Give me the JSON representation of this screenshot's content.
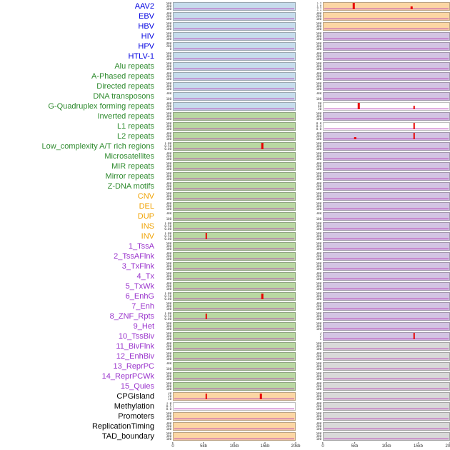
{
  "palette": {
    "panel": {
      "blue": "#c6dcec",
      "green": "#b9d8a2",
      "orange": "#fcd6a4",
      "lavender": "#d3c4e3",
      "gray": "#d9d9d9",
      "white": "#ffffff"
    },
    "label": {
      "virus": "#0000e0",
      "repeat": "#2d8a2d",
      "sv": "#f0a202",
      "state": "#9932cc",
      "other": "#000000"
    },
    "baseline": "#b030b0",
    "spike": "#e80000"
  },
  "chart_data": {
    "type": "line",
    "description": "Small-multiple genomic signal tracks: 44 feature rows x 2 region columns; pastel block = track background, magenta line = flat baseline signal, red bars = signal peaks",
    "x_axis": {
      "ticks": [
        "0",
        "5kb",
        "10kb",
        "15kb",
        "20kb"
      ],
      "range_kb": [
        0,
        20
      ]
    },
    "columns": [
      "left",
      "right"
    ],
    "rows": [
      {
        "label": "AAV2",
        "group": "virus",
        "left": {
          "bg": "blue",
          "ticks": [
            "500",
            "300",
            "100"
          ],
          "spikes": []
        },
        "right": {
          "bg": "orange",
          "ticks": [
            "1.5",
            "1.0",
            "0.5",
            "0.0"
          ],
          "spikes": [
            {
              "x": 0.24,
              "h": 0.95
            },
            {
              "x": 0.7,
              "h": 0.45
            }
          ]
        }
      },
      {
        "label": "EBV",
        "group": "virus",
        "left": {
          "bg": "blue",
          "ticks": [
            "300",
            "200",
            "100"
          ],
          "spikes": []
        },
        "right": {
          "bg": "orange",
          "ticks": [
            "300",
            "200",
            "100"
          ],
          "spikes": []
        }
      },
      {
        "label": "HBV",
        "group": "virus",
        "left": {
          "bg": "blue",
          "ticks": [
            "500",
            "300",
            "100"
          ],
          "spikes": []
        },
        "right": {
          "bg": "orange",
          "ticks": [
            "500",
            "300",
            "100"
          ],
          "spikes": []
        }
      },
      {
        "label": "HIV",
        "group": "virus",
        "left": {
          "bg": "blue",
          "ticks": [
            "500",
            "300",
            "100"
          ],
          "spikes": []
        },
        "right": {
          "bg": "lavender",
          "ticks": [
            "500",
            "300",
            "100"
          ],
          "spikes": []
        }
      },
      {
        "label": "HPV",
        "group": "virus",
        "left": {
          "bg": "blue",
          "ticks": [
            "400",
            "200",
            "0"
          ],
          "spikes": []
        },
        "right": {
          "bg": "lavender",
          "ticks": [
            "500",
            "300",
            "100"
          ],
          "spikes": []
        }
      },
      {
        "label": "HTLV-1",
        "group": "virus",
        "left": {
          "bg": "blue",
          "ticks": [
            "500",
            "300",
            "100"
          ],
          "spikes": []
        },
        "right": {
          "bg": "lavender",
          "ticks": [
            "300",
            "200",
            "100"
          ],
          "spikes": []
        }
      },
      {
        "label": "Alu repeats",
        "group": "repeat",
        "left": {
          "bg": "blue",
          "ticks": [
            "500",
            "300",
            "100"
          ],
          "spikes": []
        },
        "right": {
          "bg": "lavender",
          "ticks": [
            "500",
            "300",
            "100"
          ],
          "spikes": []
        }
      },
      {
        "label": "A-Phased repeats",
        "group": "repeat",
        "left": {
          "bg": "blue",
          "ticks": [
            "300",
            "200",
            "100"
          ],
          "spikes": []
        },
        "right": {
          "bg": "lavender",
          "ticks": [
            "300",
            "200",
            "100"
          ],
          "spikes": []
        }
      },
      {
        "label": "Directed repeats",
        "group": "repeat",
        "left": {
          "bg": "blue",
          "ticks": [
            "500",
            "300",
            "100"
          ],
          "spikes": []
        },
        "right": {
          "bg": "lavender",
          "ticks": [
            "500",
            "300",
            "100"
          ],
          "spikes": []
        }
      },
      {
        "label": "DNA transposons",
        "group": "repeat",
        "left": {
          "bg": "blue",
          "ticks": [
            "300",
            "100"
          ],
          "spikes": []
        },
        "right": {
          "bg": "lavender",
          "ticks": [
            "300",
            "100"
          ],
          "spikes": []
        }
      },
      {
        "label": "G-Quadruplex forming repeats",
        "group": "repeat",
        "left": {
          "bg": "blue",
          "ticks": [
            "300",
            "200",
            "100"
          ],
          "spikes": []
        },
        "right": {
          "bg": "white",
          "ticks": [
            "90",
            "60",
            "30"
          ],
          "spikes": [
            {
              "x": 0.28,
              "h": 0.95
            },
            {
              "x": 0.72,
              "h": 0.5
            }
          ]
        }
      },
      {
        "label": "Inverted repeats",
        "group": "repeat",
        "left": {
          "bg": "green",
          "ticks": [
            "500",
            "300",
            "100"
          ],
          "spikes": []
        },
        "right": {
          "bg": "lavender",
          "ticks": [
            "500",
            "300",
            "100"
          ],
          "spikes": []
        }
      },
      {
        "label": "L1 repeats",
        "group": "repeat",
        "left": {
          "bg": "green",
          "ticks": [
            "500",
            "300",
            "100"
          ],
          "spikes": []
        },
        "right": {
          "bg": "white",
          "ticks": [
            "0.8",
            "0.4",
            "0.0"
          ],
          "spikes": [
            {
              "x": 0.72,
              "h": 0.95
            }
          ]
        }
      },
      {
        "label": "L2 repeats",
        "group": "repeat",
        "left": {
          "bg": "green",
          "ticks": [
            "300",
            "200",
            "100"
          ],
          "spikes": []
        },
        "right": {
          "bg": "lavender",
          "ticks": [
            "300",
            "200",
            "100"
          ],
          "spikes": [
            {
              "x": 0.25,
              "h": 0.35
            },
            {
              "x": 0.72,
              "h": 0.9
            }
          ]
        }
      },
      {
        "label": "Low_complexity A/T rich regions",
        "group": "repeat",
        "left": {
          "bg": "green",
          "ticks": [
            "1.00",
            "0.50",
            "0.00"
          ],
          "spikes": [
            {
              "x": 0.73,
              "h": 0.9
            }
          ]
        },
        "right": {
          "bg": "lavender",
          "ticks": [
            "500",
            "300",
            "100"
          ],
          "spikes": []
        }
      },
      {
        "label": "Microsatellites",
        "group": "repeat",
        "left": {
          "bg": "green",
          "ticks": [
            "300",
            "200",
            "100"
          ],
          "spikes": []
        },
        "right": {
          "bg": "lavender",
          "ticks": [
            "500",
            "300",
            "100"
          ],
          "spikes": []
        }
      },
      {
        "label": "MIR repeats",
        "group": "repeat",
        "left": {
          "bg": "green",
          "ticks": [
            "500",
            "300",
            "100"
          ],
          "spikes": []
        },
        "right": {
          "bg": "lavender",
          "ticks": [
            "300",
            "200",
            "100"
          ],
          "spikes": []
        }
      },
      {
        "label": "Mirror repeats",
        "group": "repeat",
        "left": {
          "bg": "green",
          "ticks": [
            "500",
            "300",
            "100"
          ],
          "spikes": []
        },
        "right": {
          "bg": "lavender",
          "ticks": [
            "500",
            "300",
            "100"
          ],
          "spikes": []
        }
      },
      {
        "label": "Z-DNA motifs",
        "group": "repeat",
        "left": {
          "bg": "green",
          "ticks": [
            "300",
            "200",
            "100"
          ],
          "spikes": []
        },
        "right": {
          "bg": "lavender",
          "ticks": [
            "300",
            "200",
            "100"
          ],
          "spikes": []
        }
      },
      {
        "label": "CNV",
        "group": "sv",
        "left": {
          "bg": "green",
          "ticks": [
            "500",
            "300",
            "100"
          ],
          "spikes": []
        },
        "right": {
          "bg": "lavender",
          "ticks": [
            "500",
            "300",
            "100"
          ],
          "spikes": []
        }
      },
      {
        "label": "DEL",
        "group": "sv",
        "left": {
          "bg": "green",
          "ticks": [
            "300",
            "200",
            "100"
          ],
          "spikes": []
        },
        "right": {
          "bg": "lavender",
          "ticks": [
            "500",
            "300",
            "100"
          ],
          "spikes": []
        }
      },
      {
        "label": "DUP",
        "group": "sv",
        "left": {
          "bg": "green",
          "ticks": [
            "300",
            "100"
          ],
          "spikes": []
        },
        "right": {
          "bg": "lavender",
          "ticks": [
            "300",
            "100"
          ],
          "spikes": []
        }
      },
      {
        "label": "INS",
        "group": "sv",
        "left": {
          "bg": "green",
          "ticks": [
            "1.00",
            "0.50",
            "0.00"
          ],
          "spikes": []
        },
        "right": {
          "bg": "lavender",
          "ticks": [
            "500",
            "300",
            "100"
          ],
          "spikes": []
        }
      },
      {
        "label": "INV",
        "group": "sv",
        "left": {
          "bg": "green",
          "ticks": [
            "1.00",
            "0.50",
            "0.00"
          ],
          "spikes": [
            {
              "x": 0.27,
              "h": 0.9
            }
          ]
        },
        "right": {
          "bg": "lavender",
          "ticks": [
            "500",
            "300",
            "100"
          ],
          "spikes": []
        }
      },
      {
        "label": "1_TssA",
        "group": "state",
        "left": {
          "bg": "green",
          "ticks": [
            "500",
            "300",
            "100"
          ],
          "spikes": []
        },
        "right": {
          "bg": "lavender",
          "ticks": [
            "500",
            "300",
            "100"
          ],
          "spikes": []
        }
      },
      {
        "label": "2_TssAFlnk",
        "group": "state",
        "left": {
          "bg": "green",
          "ticks": [
            "300",
            "200",
            "100"
          ],
          "spikes": []
        },
        "right": {
          "bg": "lavender",
          "ticks": [
            "300",
            "200",
            "100"
          ],
          "spikes": []
        }
      },
      {
        "label": "3_TxFlnk",
        "group": "state",
        "left": {
          "bg": "green",
          "ticks": [
            "500",
            "300",
            "100"
          ],
          "spikes": []
        },
        "right": {
          "bg": "lavender",
          "ticks": [
            "500",
            "300",
            "100"
          ],
          "spikes": []
        }
      },
      {
        "label": "4_Tx",
        "group": "state",
        "left": {
          "bg": "green",
          "ticks": [
            "500",
            "300",
            "100"
          ],
          "spikes": []
        },
        "right": {
          "bg": "lavender",
          "ticks": [
            "300",
            "200",
            "100"
          ],
          "spikes": []
        }
      },
      {
        "label": "5_TxWk",
        "group": "state",
        "left": {
          "bg": "green",
          "ticks": [
            "300",
            "200",
            "100"
          ],
          "spikes": []
        },
        "right": {
          "bg": "lavender",
          "ticks": [
            "500",
            "300",
            "100"
          ],
          "spikes": []
        }
      },
      {
        "label": "6_EnhG",
        "group": "state",
        "left": {
          "bg": "green",
          "ticks": [
            "1.00",
            "0.50",
            "0.00"
          ],
          "spikes": [
            {
              "x": 0.73,
              "h": 0.85
            }
          ]
        },
        "right": {
          "bg": "lavender",
          "ticks": [
            "500",
            "300",
            "100"
          ],
          "spikes": []
        }
      },
      {
        "label": "7_Enh",
        "group": "state",
        "left": {
          "bg": "green",
          "ticks": [
            "500",
            "300",
            "100"
          ],
          "spikes": []
        },
        "right": {
          "bg": "lavender",
          "ticks": [
            "300",
            "200",
            "100"
          ],
          "spikes": []
        }
      },
      {
        "label": "8_ZNF_Rpts",
        "group": "state",
        "left": {
          "bg": "green",
          "ticks": [
            "1.00",
            "0.50",
            "0.00"
          ],
          "spikes": [
            {
              "x": 0.27,
              "h": 0.85
            }
          ]
        },
        "right": {
          "bg": "lavender",
          "ticks": [
            "500",
            "300",
            "100"
          ],
          "spikes": []
        }
      },
      {
        "label": "9_Het",
        "group": "state",
        "left": {
          "bg": "green",
          "ticks": [
            "500",
            "300",
            "100"
          ],
          "spikes": []
        },
        "right": {
          "bg": "lavender",
          "ticks": [
            "500",
            "300",
            "100"
          ],
          "spikes": []
        }
      },
      {
        "label": "10_TssBiv",
        "group": "state",
        "left": {
          "bg": "green",
          "ticks": [
            "500",
            "300",
            "100"
          ],
          "spikes": []
        },
        "right": {
          "bg": "lavender",
          "ticks": [
            "3",
            "2",
            "1"
          ],
          "spikes": [
            {
              "x": 0.72,
              "h": 0.9
            }
          ]
        }
      },
      {
        "label": "11_BivFlnk",
        "group": "state",
        "left": {
          "bg": "green",
          "ticks": [
            "300",
            "200",
            "100"
          ],
          "spikes": []
        },
        "right": {
          "bg": "gray",
          "ticks": [
            "500",
            "300",
            "100"
          ],
          "spikes": []
        }
      },
      {
        "label": "12_EnhBiv",
        "group": "state",
        "left": {
          "bg": "green",
          "ticks": [
            "500",
            "300",
            "100"
          ],
          "spikes": []
        },
        "right": {
          "bg": "gray",
          "ticks": [
            "300",
            "200",
            "100"
          ],
          "spikes": []
        }
      },
      {
        "label": "13_ReprPC",
        "group": "state",
        "left": {
          "bg": "green",
          "ticks": [
            "300",
            "100"
          ],
          "spikes": []
        },
        "right": {
          "bg": "gray",
          "ticks": [
            "500",
            "300",
            "100"
          ],
          "spikes": []
        }
      },
      {
        "label": "14_ReprPCWk",
        "group": "state",
        "left": {
          "bg": "green",
          "ticks": [
            "500",
            "300",
            "100"
          ],
          "spikes": []
        },
        "right": {
          "bg": "gray",
          "ticks": [
            "500",
            "300",
            "100"
          ],
          "spikes": []
        }
      },
      {
        "label": "15_Quies",
        "group": "state",
        "left": {
          "bg": "green",
          "ticks": [
            "500",
            "300",
            "100"
          ],
          "spikes": []
        },
        "right": {
          "bg": "gray",
          "ticks": [
            "300",
            "200",
            "100"
          ],
          "spikes": []
        }
      },
      {
        "label": "CPGisland",
        "group": "other",
        "left": {
          "bg": "orange",
          "ticks": [
            "30",
            "20",
            "10"
          ],
          "spikes": [
            {
              "x": 0.27,
              "h": 0.85
            },
            {
              "x": 0.72,
              "h": 0.8
            }
          ]
        },
        "right": {
          "bg": "gray",
          "ticks": [
            "500",
            "300",
            "100"
          ],
          "spikes": []
        }
      },
      {
        "label": "Methylation",
        "group": "other",
        "left": {
          "bg": "white",
          "ticks": [
            "1.0",
            "0.5",
            "0.0"
          ],
          "spikes": []
        },
        "right": {
          "bg": "gray",
          "ticks": [
            "300",
            "200",
            "100"
          ],
          "spikes": []
        }
      },
      {
        "label": "Promoters",
        "group": "other",
        "left": {
          "bg": "orange",
          "ticks": [
            "500",
            "300",
            "100"
          ],
          "spikes": []
        },
        "right": {
          "bg": "gray",
          "ticks": [
            "500",
            "300",
            "100"
          ],
          "spikes": []
        }
      },
      {
        "label": "ReplicationTiming",
        "group": "other",
        "left": {
          "bg": "orange",
          "ticks": [
            "300",
            "200",
            "100"
          ],
          "spikes": []
        },
        "right": {
          "bg": "gray",
          "ticks": [
            "300",
            "200",
            "100"
          ],
          "spikes": []
        }
      },
      {
        "label": "TAD_boundary",
        "group": "other",
        "left": {
          "bg": "orange",
          "ticks": [
            "500",
            "300",
            "100"
          ],
          "spikes": []
        },
        "right": {
          "bg": "gray",
          "ticks": [
            "500",
            "300",
            "100"
          ],
          "spikes": []
        }
      }
    ]
  }
}
